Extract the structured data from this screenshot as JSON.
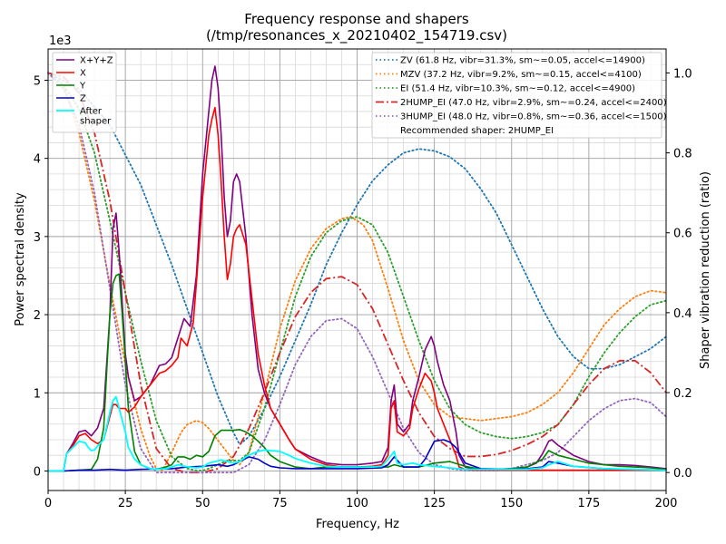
{
  "chart_data": {
    "type": "line",
    "title": "Frequency response and shapers",
    "subtitle": "(/tmp/resonances_x_20210402_154719.csv)",
    "xlabel": "Frequency, Hz",
    "ylabel": "Power spectral density",
    "ylabel_right": "Shaper vibration reduction (ratio)",
    "y_offset_text": "1e3",
    "xlim": [
      0,
      200
    ],
    "ylim": [
      -0.25,
      5.4
    ],
    "ylim_right": [
      -0.045,
      1.06
    ],
    "xticks": [
      "0",
      "25",
      "50",
      "75",
      "100",
      "125",
      "150",
      "175",
      "200"
    ],
    "yticks": [
      "0",
      "1",
      "2",
      "3",
      "4",
      "5"
    ],
    "yticks_right": [
      "0.0",
      "0.2",
      "0.4",
      "0.6",
      "0.8",
      "1.0"
    ],
    "grid": true,
    "legend_left_position": "top-left",
    "legend_right_position": "top-right",
    "recommendation": "Recommended shaper: 2HUMP_EI",
    "series": [
      {
        "name": "X+Y+Z",
        "axis": "left",
        "color": "#800080",
        "style": "solid",
        "width": 1.6,
        "x": [
          0,
          5,
          6,
          8,
          10,
          12,
          14,
          16,
          18,
          20,
          21,
          22,
          23,
          25,
          26,
          27,
          28,
          30,
          33,
          36,
          38,
          40,
          42,
          44,
          46,
          48,
          50,
          52,
          53,
          54,
          55,
          56,
          57,
          58,
          59,
          60,
          61,
          62,
          64,
          66,
          68,
          70,
          72,
          75,
          78,
          80,
          85,
          90,
          95,
          100,
          105,
          108,
          110,
          111,
          112,
          113,
          115,
          117,
          118,
          120,
          122,
          124,
          125,
          126,
          128,
          130,
          132,
          133,
          135,
          138,
          140,
          145,
          150,
          155,
          158,
          160,
          162,
          163,
          165,
          170,
          175,
          180,
          185,
          190,
          195,
          200
        ],
        "y": [
          0.0,
          0.0,
          0.22,
          0.35,
          0.5,
          0.52,
          0.45,
          0.55,
          0.8,
          2.0,
          3.1,
          3.3,
          2.8,
          1.5,
          1.2,
          1.05,
          0.9,
          0.95,
          1.1,
          1.35,
          1.37,
          1.45,
          1.7,
          1.95,
          1.85,
          2.5,
          3.8,
          4.6,
          5.0,
          5.18,
          4.9,
          4.3,
          3.5,
          3.0,
          3.2,
          3.7,
          3.8,
          3.7,
          3.0,
          2.0,
          1.3,
          1.0,
          0.8,
          0.6,
          0.4,
          0.28,
          0.18,
          0.1,
          0.08,
          0.08,
          0.1,
          0.12,
          0.3,
          0.9,
          1.1,
          0.6,
          0.5,
          0.6,
          0.9,
          1.2,
          1.55,
          1.72,
          1.6,
          1.4,
          1.1,
          0.9,
          0.5,
          0.2,
          0.05,
          0.02,
          0.02,
          0.02,
          0.03,
          0.05,
          0.1,
          0.22,
          0.38,
          0.4,
          0.33,
          0.2,
          0.12,
          0.08,
          0.08,
          0.07,
          0.05,
          0.03
        ]
      },
      {
        "name": "X",
        "axis": "left",
        "color": "#ff0000",
        "style": "solid",
        "width": 1.6,
        "x": [
          0,
          5,
          6,
          8,
          10,
          12,
          14,
          16,
          18,
          20,
          21,
          22,
          23,
          25,
          26,
          28,
          30,
          33,
          36,
          38,
          40,
          42,
          43,
          45,
          47,
          48,
          50,
          52,
          53,
          54,
          55,
          56,
          57,
          58,
          59,
          60,
          61,
          62,
          64,
          66,
          68,
          70,
          72,
          75,
          78,
          80,
          85,
          90,
          95,
          100,
          105,
          108,
          110,
          111,
          112,
          113,
          115,
          117,
          118,
          120,
          122,
          124,
          125,
          126,
          128,
          130,
          132,
          133,
          135,
          138,
          140,
          145,
          150,
          155,
          160,
          165,
          170,
          180,
          190,
          200
        ],
        "y": [
          0.0,
          0.0,
          0.22,
          0.32,
          0.45,
          0.48,
          0.4,
          0.35,
          0.4,
          0.7,
          0.85,
          0.85,
          0.8,
          0.8,
          0.75,
          0.82,
          0.95,
          1.1,
          1.25,
          1.28,
          1.35,
          1.45,
          1.7,
          1.6,
          1.9,
          2.4,
          3.5,
          4.3,
          4.5,
          4.65,
          4.3,
          3.7,
          3.0,
          2.45,
          2.65,
          3.0,
          3.1,
          3.15,
          2.9,
          2.2,
          1.5,
          1.1,
          0.8,
          0.6,
          0.4,
          0.28,
          0.15,
          0.08,
          0.05,
          0.05,
          0.06,
          0.08,
          0.2,
          0.8,
          0.9,
          0.5,
          0.45,
          0.55,
          0.8,
          1.05,
          1.25,
          1.15,
          1.0,
          0.8,
          0.6,
          0.4,
          0.2,
          0.05,
          0.02,
          0.01,
          0.01,
          0.01,
          0.01,
          0.01,
          0.01,
          0.01,
          0.01,
          0.01,
          0.01,
          0.01
        ]
      },
      {
        "name": "Y",
        "axis": "left",
        "color": "#008000",
        "style": "solid",
        "width": 1.6,
        "x": [
          0,
          5,
          10,
          14,
          16,
          18,
          19,
          20,
          21,
          22,
          23,
          24,
          25,
          26,
          28,
          30,
          33,
          35,
          38,
          40,
          42,
          44,
          46,
          48,
          50,
          52,
          54,
          56,
          58,
          60,
          62,
          64,
          66,
          68,
          70,
          72,
          75,
          80,
          85,
          90,
          95,
          100,
          105,
          110,
          112,
          115,
          120,
          125,
          130,
          135,
          140,
          145,
          150,
          155,
          160,
          162,
          165,
          170,
          175,
          180,
          185,
          190,
          195,
          200
        ],
        "y": [
          0,
          0,
          0.01,
          0.02,
          0.15,
          0.55,
          1.3,
          2.0,
          2.4,
          2.5,
          2.52,
          2.0,
          1.4,
          0.8,
          0.25,
          0.08,
          0.03,
          0.02,
          0.05,
          0.08,
          0.18,
          0.18,
          0.15,
          0.2,
          0.18,
          0.25,
          0.45,
          0.52,
          0.52,
          0.52,
          0.53,
          0.5,
          0.45,
          0.38,
          0.3,
          0.2,
          0.12,
          0.05,
          0.03,
          0.05,
          0.05,
          0.05,
          0.05,
          0.05,
          0.08,
          0.05,
          0.05,
          0.1,
          0.12,
          0.06,
          0.02,
          0.02,
          0.03,
          0.05,
          0.15,
          0.26,
          0.2,
          0.15,
          0.1,
          0.08,
          0.06,
          0.05,
          0.04,
          0.02
        ]
      },
      {
        "name": "Z",
        "axis": "left",
        "color": "#0000cc",
        "style": "solid",
        "width": 1.6,
        "x": [
          0,
          5,
          10,
          15,
          20,
          25,
          30,
          40,
          45,
          50,
          55,
          58,
          60,
          62,
          65,
          68,
          70,
          72,
          75,
          80,
          90,
          100,
          108,
          110,
          112,
          115,
          120,
          122,
          125,
          128,
          130,
          132,
          135,
          140,
          150,
          155,
          160,
          162,
          165,
          170,
          180,
          190,
          200
        ],
        "y": [
          0,
          0,
          0.01,
          0.01,
          0.02,
          0.01,
          0.02,
          0.03,
          0.05,
          0.06,
          0.08,
          0.06,
          0.08,
          0.12,
          0.18,
          0.15,
          0.1,
          0.06,
          0.04,
          0.03,
          0.03,
          0.03,
          0.04,
          0.08,
          0.18,
          0.05,
          0.05,
          0.15,
          0.38,
          0.4,
          0.37,
          0.3,
          0.1,
          0.03,
          0.02,
          0.03,
          0.05,
          0.12,
          0.1,
          0.06,
          0.03,
          0.02,
          0.01
        ]
      },
      {
        "name": "After\nshaper",
        "axis": "left",
        "color": "#00ffff",
        "style": "solid",
        "width": 1.8,
        "x": [
          0,
          5,
          6,
          8,
          10,
          12,
          13,
          14,
          15,
          16,
          18,
          20,
          21,
          22,
          23,
          25,
          26,
          28,
          30,
          33,
          35,
          38,
          40,
          42,
          44,
          46,
          48,
          50,
          52,
          54,
          56,
          58,
          60,
          62,
          64,
          66,
          68,
          70,
          72,
          75,
          78,
          80,
          85,
          90,
          95,
          100,
          105,
          108,
          110,
          112,
          113,
          115,
          118,
          120,
          125,
          130,
          135,
          140,
          150,
          155,
          160,
          162,
          165,
          170,
          180,
          190,
          200
        ],
        "y": [
          0,
          0,
          0.22,
          0.3,
          0.38,
          0.36,
          0.3,
          0.26,
          0.27,
          0.32,
          0.4,
          0.75,
          0.9,
          0.95,
          0.8,
          0.5,
          0.3,
          0.15,
          0.08,
          0.03,
          0.02,
          0.03,
          0.05,
          0.08,
          0.06,
          0.05,
          0.04,
          0.05,
          0.1,
          0.12,
          0.14,
          0.12,
          0.1,
          0.12,
          0.18,
          0.22,
          0.25,
          0.27,
          0.26,
          0.25,
          0.2,
          0.16,
          0.1,
          0.06,
          0.05,
          0.05,
          0.05,
          0.06,
          0.15,
          0.25,
          0.1,
          0.08,
          0.1,
          0.08,
          0.06,
          0.04,
          0.02,
          0.02,
          0.02,
          0.02,
          0.04,
          0.08,
          0.12,
          0.06,
          0.03,
          0.02,
          0.01
        ]
      },
      {
        "name": "ZV (61.8 Hz, vibr=31.3%, sm~=0.05, accel<=14900)",
        "axis": "right",
        "color": "#1f77b4",
        "style": "dotted",
        "width": 1.8,
        "x": [
          0,
          10,
          20,
          30,
          40,
          50,
          55,
          60,
          62,
          65,
          70,
          75,
          80,
          85,
          90,
          95,
          100,
          105,
          110,
          115,
          120,
          125,
          130,
          135,
          140,
          145,
          150,
          155,
          160,
          165,
          170,
          175,
          180,
          185,
          190,
          195,
          200
        ],
        "y": [
          1.0,
          0.96,
          0.87,
          0.72,
          0.52,
          0.3,
          0.19,
          0.1,
          0.07,
          0.09,
          0.16,
          0.24,
          0.33,
          0.42,
          0.52,
          0.6,
          0.67,
          0.73,
          0.77,
          0.8,
          0.81,
          0.805,
          0.79,
          0.76,
          0.71,
          0.65,
          0.57,
          0.49,
          0.41,
          0.34,
          0.29,
          0.26,
          0.26,
          0.27,
          0.29,
          0.31,
          0.34
        ]
      },
      {
        "name": "MZV (37.2 Hz, vibr=9.2%, sm~=0.15, accel<=4100)",
        "axis": "right",
        "color": "#ff7f0e",
        "style": "dotted",
        "width": 1.8,
        "x": [
          0,
          5,
          10,
          15,
          20,
          25,
          30,
          33,
          35,
          37,
          40,
          43,
          45,
          48,
          50,
          52,
          55,
          58,
          60,
          62,
          65,
          70,
          75,
          80,
          85,
          90,
          95,
          98,
          100,
          102,
          105,
          110,
          115,
          120,
          125,
          130,
          135,
          140,
          145,
          150,
          155,
          160,
          165,
          170,
          175,
          180,
          185,
          190,
          195,
          200
        ],
        "y": [
          1.0,
          0.97,
          0.85,
          0.68,
          0.47,
          0.27,
          0.11,
          0.04,
          0.01,
          0.005,
          0.05,
          0.1,
          0.12,
          0.13,
          0.125,
          0.11,
          0.08,
          0.05,
          0.03,
          0.02,
          0.05,
          0.2,
          0.36,
          0.48,
          0.56,
          0.61,
          0.635,
          0.64,
          0.63,
          0.62,
          0.58,
          0.46,
          0.33,
          0.23,
          0.17,
          0.14,
          0.135,
          0.13,
          0.135,
          0.14,
          0.15,
          0.17,
          0.2,
          0.25,
          0.31,
          0.37,
          0.41,
          0.44,
          0.455,
          0.45
        ]
      },
      {
        "name": "EI (51.4 Hz, vibr=10.3%, sm~=0.12, accel<=4900)",
        "axis": "right",
        "color": "#2ca02c",
        "style": "dotted",
        "width": 1.8,
        "x": [
          0,
          5,
          10,
          15,
          20,
          25,
          30,
          35,
          40,
          45,
          48,
          50,
          52,
          55,
          58,
          60,
          62,
          65,
          70,
          75,
          80,
          85,
          90,
          95,
          100,
          105,
          110,
          115,
          120,
          125,
          130,
          135,
          140,
          145,
          150,
          155,
          160,
          165,
          170,
          175,
          180,
          185,
          190,
          195,
          200
        ],
        "y": [
          1.0,
          0.97,
          0.91,
          0.8,
          0.63,
          0.45,
          0.28,
          0.13,
          0.04,
          0.01,
          0.005,
          0.005,
          0.01,
          0.02,
          0.03,
          0.03,
          0.03,
          0.05,
          0.16,
          0.3,
          0.44,
          0.54,
          0.6,
          0.63,
          0.64,
          0.62,
          0.55,
          0.44,
          0.33,
          0.23,
          0.16,
          0.12,
          0.1,
          0.09,
          0.085,
          0.09,
          0.1,
          0.12,
          0.17,
          0.24,
          0.3,
          0.35,
          0.39,
          0.42,
          0.43
        ]
      },
      {
        "name": "2HUMP_EI (47.0 Hz, vibr=2.9%, sm~=0.24, accel<=2400)",
        "axis": "right",
        "color": "#d62728",
        "style": "dashdot",
        "width": 1.8,
        "x": [
          0,
          5,
          10,
          15,
          20,
          25,
          30,
          35,
          40,
          45,
          50,
          55,
          60,
          65,
          70,
          75,
          80,
          85,
          90,
          95,
          100,
          105,
          110,
          115,
          120,
          125,
          130,
          135,
          140,
          145,
          150,
          155,
          160,
          165,
          170,
          175,
          180,
          185,
          190,
          195,
          200
        ],
        "y": [
          1.0,
          0.99,
          0.95,
          0.85,
          0.68,
          0.45,
          0.22,
          0.06,
          0.01,
          0.0,
          0.0,
          0.01,
          0.04,
          0.11,
          0.2,
          0.3,
          0.39,
          0.45,
          0.485,
          0.49,
          0.47,
          0.41,
          0.32,
          0.23,
          0.15,
          0.09,
          0.06,
          0.04,
          0.04,
          0.045,
          0.055,
          0.07,
          0.09,
          0.12,
          0.17,
          0.22,
          0.26,
          0.28,
          0.28,
          0.25,
          0.2
        ]
      },
      {
        "name": "3HUMP_EI (48.0 Hz, vibr=0.8%, sm~=0.36, accel<=1500)",
        "axis": "right",
        "color": "#9467bd",
        "style": "dotted",
        "width": 1.8,
        "x": [
          0,
          5,
          10,
          15,
          20,
          25,
          30,
          35,
          40,
          45,
          50,
          55,
          60,
          65,
          70,
          75,
          80,
          85,
          90,
          95,
          100,
          105,
          110,
          115,
          120,
          125,
          130,
          135,
          140,
          145,
          150,
          155,
          160,
          165,
          170,
          175,
          180,
          185,
          190,
          195,
          200
        ],
        "y": [
          1.0,
          0.96,
          0.87,
          0.7,
          0.46,
          0.22,
          0.06,
          0.0,
          0.0,
          0.0,
          0.0,
          0.0,
          0.0,
          0.02,
          0.08,
          0.17,
          0.27,
          0.34,
          0.38,
          0.385,
          0.36,
          0.29,
          0.2,
          0.11,
          0.05,
          0.02,
          0.01,
          0.005,
          0.005,
          0.005,
          0.01,
          0.02,
          0.03,
          0.05,
          0.09,
          0.13,
          0.16,
          0.18,
          0.185,
          0.175,
          0.14
        ]
      }
    ]
  }
}
